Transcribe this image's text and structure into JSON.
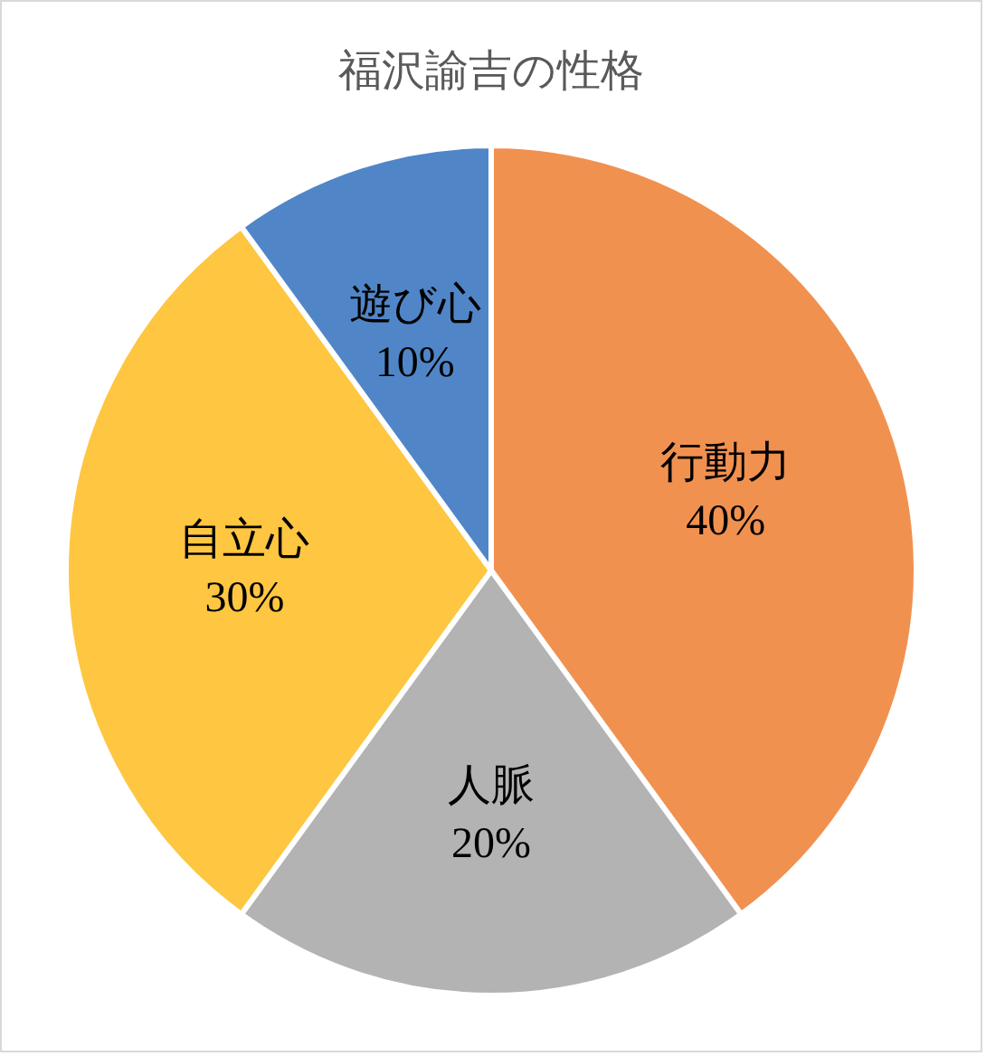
{
  "chart_data": {
    "type": "pie",
    "title": "福沢諭吉の性格",
    "categories": [
      "行動力",
      "人脈",
      "自立心",
      "遊び心"
    ],
    "values": [
      40,
      20,
      30,
      10
    ],
    "value_labels": [
      "40%",
      "20%",
      "30%",
      "10%"
    ],
    "colors": [
      "#f19150",
      "#b3b3b3",
      "#fec641",
      "#5086c8"
    ]
  }
}
